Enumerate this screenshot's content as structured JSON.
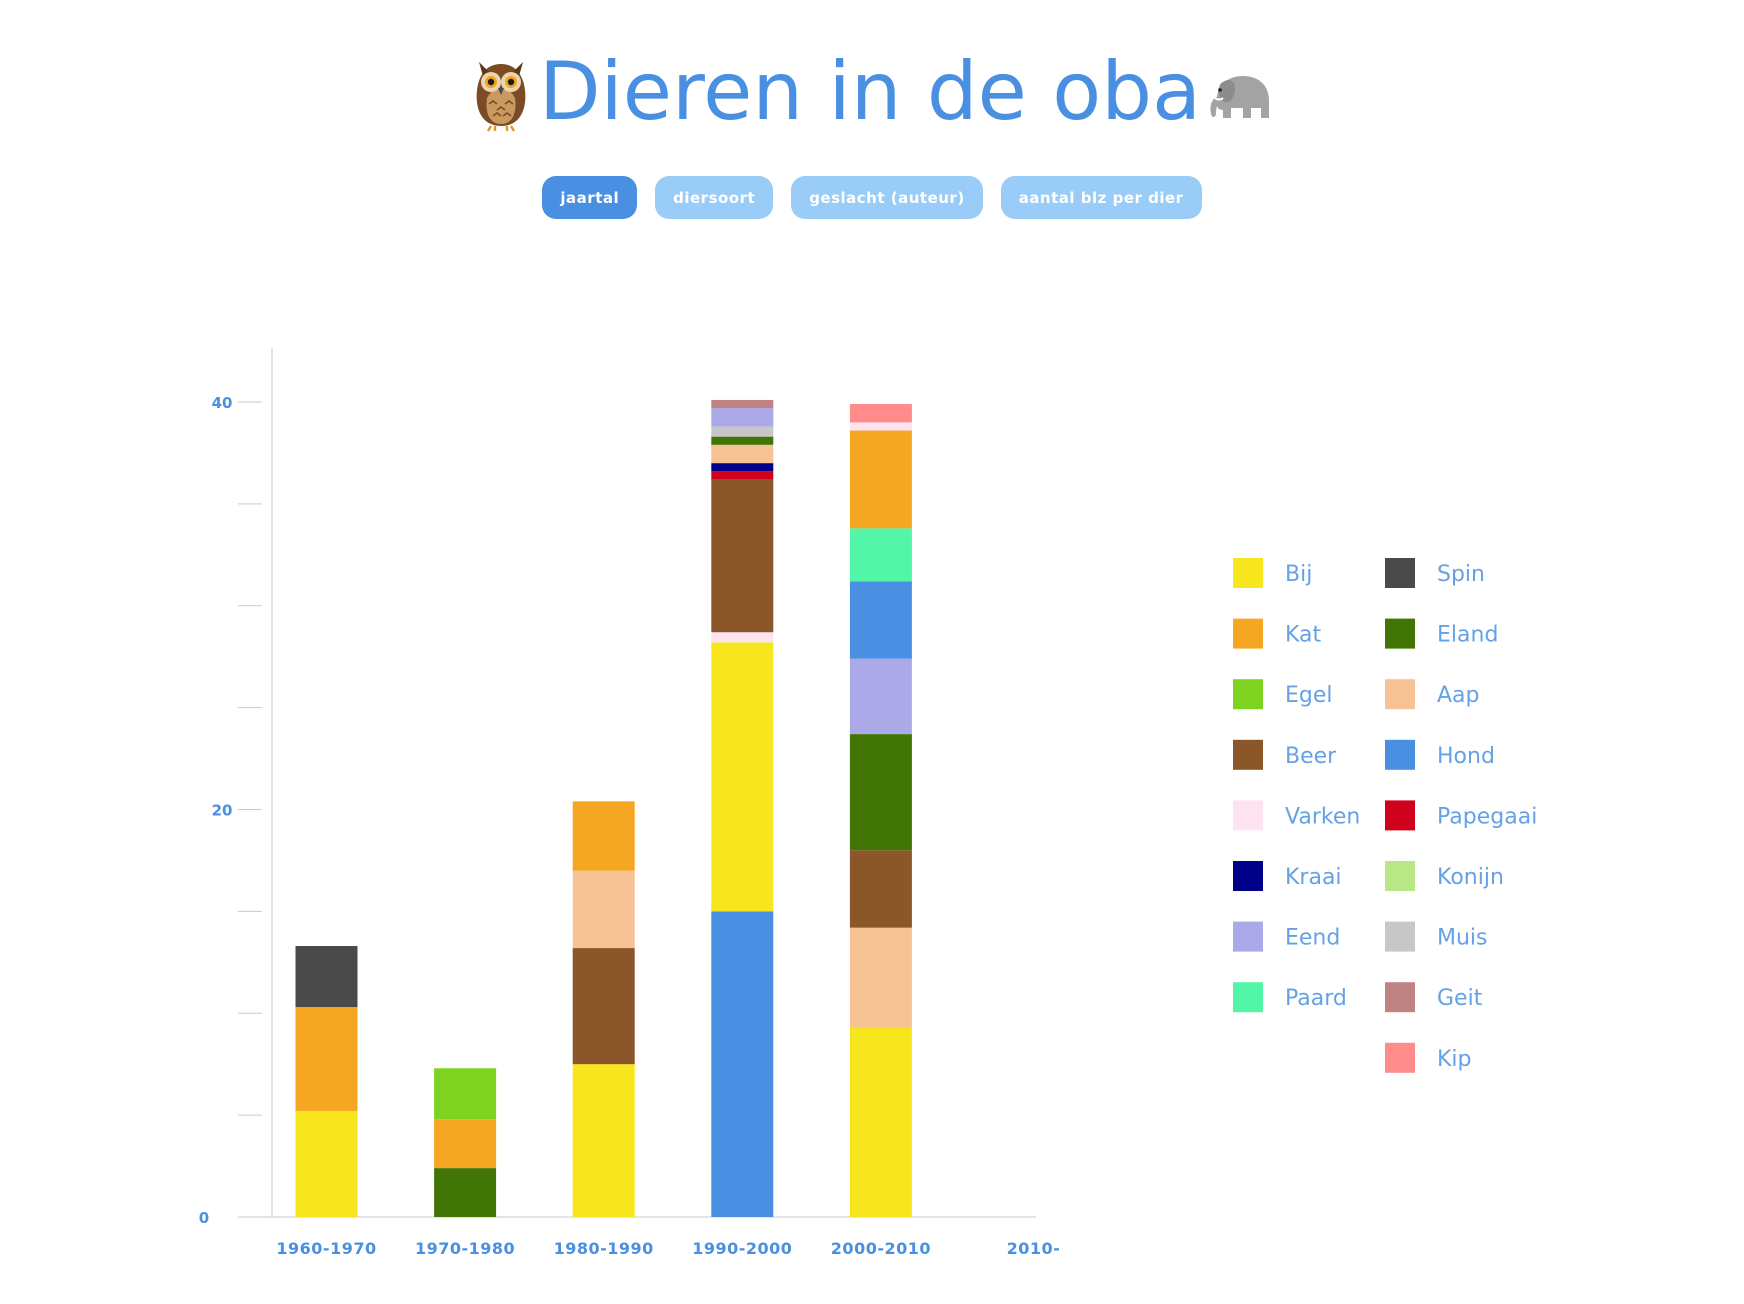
{
  "header": {
    "title": "Dieren in de oba",
    "left_icon": "owl-icon",
    "right_icon": "elephant-icon"
  },
  "tabs": [
    {
      "label": "jaartal",
      "active": true
    },
    {
      "label": "diersoort",
      "active": false
    },
    {
      "label": "geslacht (auteur)",
      "active": false
    },
    {
      "label": "aantal blz per dier",
      "active": false
    }
  ],
  "colors": {
    "accent": "#4a90e2",
    "tab_inactive": "#99cdf8",
    "axis": "#c9c9c9"
  },
  "chart_data": {
    "type": "bar",
    "stacked": true,
    "categories": [
      "1960-1970",
      "1970-1980",
      "1980-1990",
      "1990-2000",
      "2000-2010",
      "2010-"
    ],
    "ylim": [
      0,
      42
    ],
    "yticks": [
      0,
      5,
      10,
      15,
      20,
      25,
      30,
      35,
      40
    ],
    "ytick_labels": [
      "0",
      "",
      "",
      "",
      "20",
      "",
      "",
      "",
      "40"
    ],
    "legend_position": "right",
    "series": [
      {
        "name": "Bij",
        "color": "#f7e61d",
        "values": [
          5.2,
          0,
          7.5,
          13.2,
          9.3,
          0
        ]
      },
      {
        "name": "Kat",
        "color": "#f5a623",
        "values": [
          5.1,
          2.4,
          3.4,
          0,
          4.8,
          0
        ]
      },
      {
        "name": "Egel",
        "color": "#7ed321",
        "values": [
          0,
          2.5,
          0,
          0,
          0,
          0
        ]
      },
      {
        "name": "Beer",
        "color": "#8b572a",
        "values": [
          0,
          0,
          5.7,
          7.5,
          3.8,
          0
        ]
      },
      {
        "name": "Varken",
        "color": "#fde2f0",
        "values": [
          0,
          0,
          0,
          0.5,
          0.4,
          0
        ]
      },
      {
        "name": "Kraai",
        "color": "#000088",
        "values": [
          0,
          0,
          0,
          0.4,
          0,
          0
        ]
      },
      {
        "name": "Eend",
        "color": "#aba9e7",
        "values": [
          0,
          0,
          0,
          0.9,
          3.7,
          0
        ]
      },
      {
        "name": "Paard",
        "color": "#53f6a6",
        "values": [
          0,
          0,
          0,
          0,
          2.6,
          0
        ]
      },
      {
        "name": "Spin",
        "color": "#4a4a4a",
        "values": [
          3.0,
          0,
          0,
          0,
          0,
          0
        ]
      },
      {
        "name": "Eland",
        "color": "#417505",
        "values": [
          0,
          2.4,
          0,
          0.4,
          5.7,
          0
        ]
      },
      {
        "name": "Aap",
        "color": "#f7c394",
        "values": [
          0,
          0,
          3.8,
          0.9,
          4.9,
          0
        ]
      },
      {
        "name": "Hond",
        "color": "#4a90e2",
        "values": [
          0,
          0,
          0,
          15.0,
          3.8,
          0
        ]
      },
      {
        "name": "Papegaai",
        "color": "#d0021b",
        "values": [
          0,
          0,
          0,
          0.4,
          0,
          0
        ]
      },
      {
        "name": "Konijn",
        "color": "#b8e986",
        "values": [
          0,
          0,
          0,
          0,
          0,
          0
        ]
      },
      {
        "name": "Muis",
        "color": "#c7c7c7",
        "values": [
          0,
          0,
          0,
          0.5,
          0,
          0
        ]
      },
      {
        "name": "Geit",
        "color": "#c08383",
        "values": [
          0,
          0,
          0,
          0.4,
          0,
          0
        ]
      },
      {
        "name": "Kip",
        "color": "#ff8b8b",
        "values": [
          0,
          0,
          0,
          0,
          0.9,
          0
        ]
      }
    ],
    "stack_order": [
      [
        "Bij",
        "Kat",
        "Spin"
      ],
      [
        "Eland",
        "Kat",
        "Egel"
      ],
      [
        "Bij",
        "Beer",
        "Aap",
        "Kat"
      ],
      [
        "Hond",
        "Bij",
        "Varken",
        "Beer",
        "Papegaai",
        "Kraai",
        "Aap",
        "Eland",
        "Muis",
        "Eend",
        "Geit"
      ],
      [
        "Bij",
        "Aap",
        "Beer",
        "Eland",
        "Eend",
        "Hond",
        "Paard",
        "Kat",
        "Varken",
        "Kip"
      ],
      []
    ],
    "legend": {
      "columns": [
        [
          "Bij",
          "Kat",
          "Egel",
          "Beer",
          "Varken",
          "Kraai",
          "Eend",
          "Paard"
        ],
        [
          "Spin",
          "Eland",
          "Aap",
          "Hond",
          "Papegaai",
          "Konijn",
          "Muis",
          "Geit",
          "Kip"
        ]
      ]
    }
  }
}
